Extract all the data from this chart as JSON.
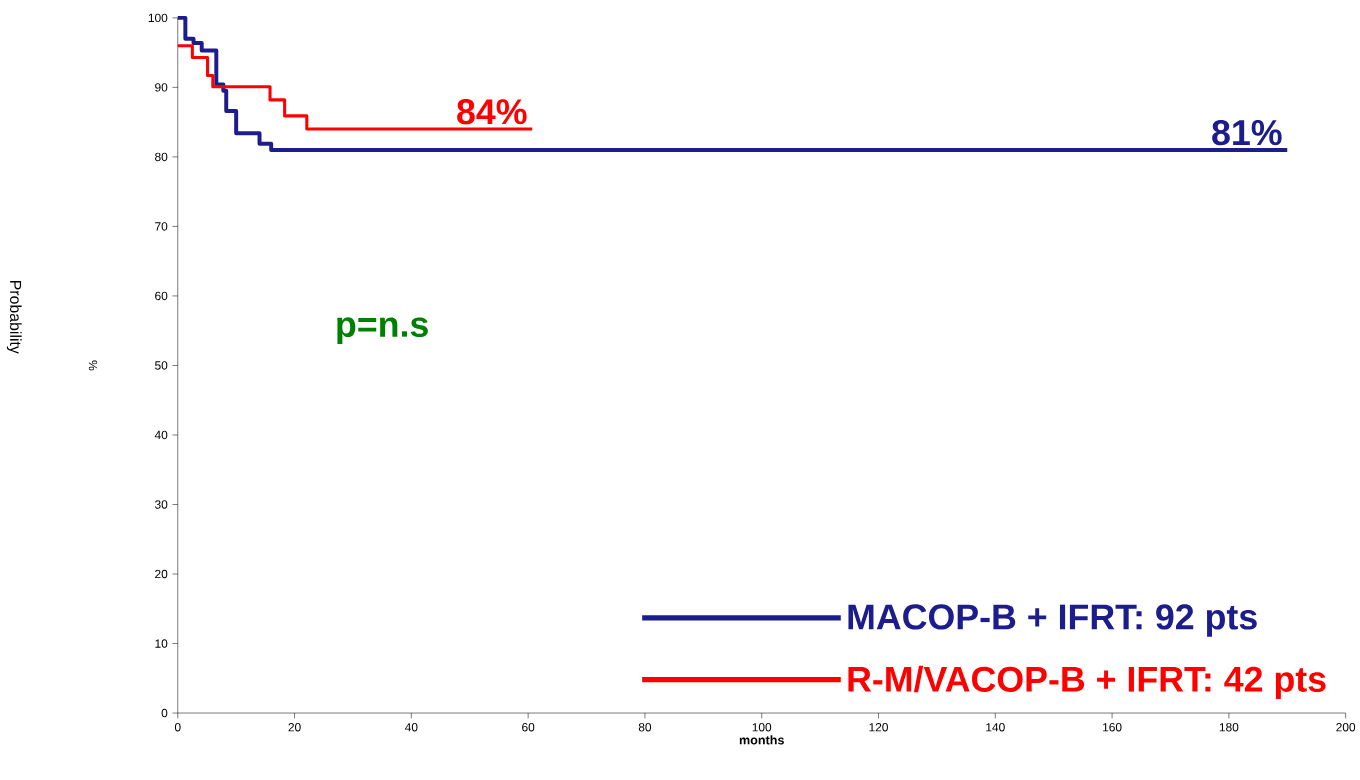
{
  "chart_data": {
    "type": "step",
    "xlabel": "months",
    "ylabel": "%",
    "xlim": [
      0,
      200
    ],
    "ylim": [
      0,
      100
    ],
    "xticks": [
      0,
      20,
      40,
      60,
      80,
      100,
      120,
      140,
      160,
      180,
      200
    ],
    "yticks": [
      0,
      10,
      20,
      30,
      40,
      50,
      60,
      70,
      80,
      90,
      100
    ],
    "grid": false,
    "legend": "bottom right",
    "marker": "none",
    "line_style": "solid",
    "series": [
      {
        "name": "MACOP-B + IFRT: 92 pts",
        "color": "#1c1c8c",
        "x": [
          0,
          1.3,
          2.7,
          4.1,
          6.6,
          7.8,
          8.3,
          10,
          14,
          16,
          190
        ],
        "values": [
          100,
          97,
          96.4,
          95.3,
          90.4,
          89.5,
          86.6,
          83.4,
          81.9,
          81,
          81
        ]
      },
      {
        "name": "R-M/VACOP-B + IFRT: 42 pts",
        "color": "#ff0000",
        "x": [
          0,
          2.5,
          5.1,
          6,
          15.8,
          18.3,
          22.1,
          60.7
        ],
        "values": [
          96,
          94.3,
          91.7,
          90.1,
          88.2,
          85.9,
          84,
          84
        ]
      }
    ],
    "annotations": [
      {
        "text": "84%",
        "x": 60.7,
        "y": 84
      },
      {
        "text": "81%",
        "x": 190,
        "y": 81
      },
      "p=n.s",
      "Probability"
    ]
  }
}
